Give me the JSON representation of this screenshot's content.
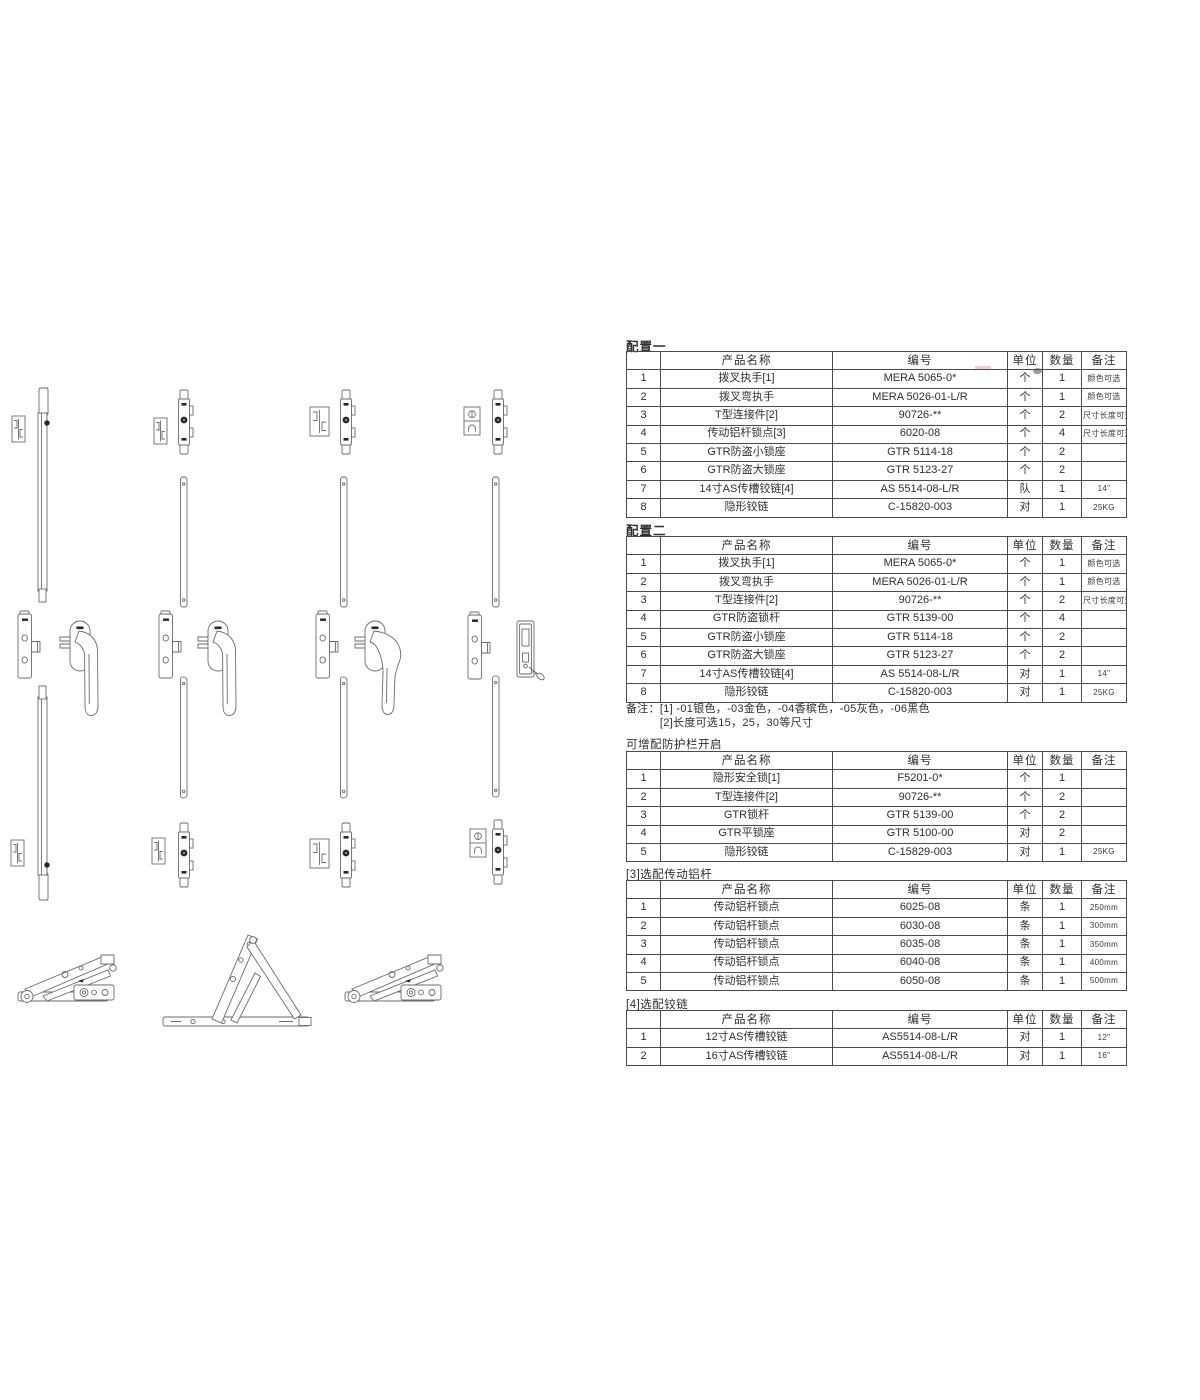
{
  "colors": {
    "table_border": "#4a4a4a",
    "text": "#2e2e2e",
    "line_art": "#6a6a6a"
  },
  "notes": {
    "label": "备注：",
    "line1": "[1] -01银色，-03金色，-04香槟色，-05灰色，-06黑色",
    "line2": "[2]长度可选15，25，30等尺寸"
  },
  "tables": [
    {
      "title": "配置一",
      "headers": [
        "",
        "产品名称",
        "编号",
        "单位",
        "数量",
        "备注"
      ],
      "rows": [
        [
          "1",
          "拨叉执手[1]",
          "MERA 5065-0*",
          "个",
          "1",
          "颜色可选"
        ],
        [
          "2",
          "拨叉弯执手",
          "MERA 5026-01-L/R",
          "个",
          "1",
          "颜色可选"
        ],
        [
          "3",
          "T型连接件[2]",
          "90726-**",
          "个",
          "2",
          "尺寸长度可选"
        ],
        [
          "4",
          "传动铝杆锁点[3]",
          "6020-08",
          "个",
          "4",
          "尺寸长度可选"
        ],
        [
          "5",
          "GTR防盗小锁座",
          "GTR 5114-18",
          "个",
          "2",
          ""
        ],
        [
          "6",
          "GTR防盗大锁座",
          "GTR 5123-27",
          "个",
          "2",
          ""
        ],
        [
          "7",
          "14寸AS传槽铰链[4]",
          "AS 5514-08-L/R",
          "队",
          "1",
          "14\""
        ],
        [
          "8",
          "隐形铰链",
          "C-15820-003",
          "对",
          "1",
          "25KG"
        ]
      ]
    },
    {
      "title": "配置二",
      "headers": [
        "",
        "产品名称",
        "编号",
        "单位",
        "数量",
        "备注"
      ],
      "rows": [
        [
          "1",
          "拨叉执手[1]",
          "MERA 5065-0*",
          "个",
          "1",
          "颜色可选"
        ],
        [
          "2",
          "拨叉弯执手",
          "MERA 5026-01-L/R",
          "个",
          "1",
          "颜色可选"
        ],
        [
          "3",
          "T型连接件[2]",
          "90726-**",
          "个",
          "2",
          "尺寸长度可选"
        ],
        [
          "4",
          "GTR防盗锁杆",
          "GTR 5139-00",
          "个",
          "4",
          ""
        ],
        [
          "5",
          "GTR防盗小锁座",
          "GTR 5114-18",
          "个",
          "2",
          ""
        ],
        [
          "6",
          "GTR防盗大锁座",
          "GTR 5123-27",
          "个",
          "2",
          ""
        ],
        [
          "7",
          "14寸AS传槽铰链[4]",
          "AS 5514-08-L/R",
          "对",
          "1",
          "14\""
        ],
        [
          "8",
          "隐形铰链",
          "C-15820-003",
          "对",
          "1",
          "25KG"
        ]
      ]
    },
    {
      "title": "可增配防护栏开启",
      "headers": [
        "",
        "产品名称",
        "编号",
        "单位",
        "数量",
        "备注"
      ],
      "rows": [
        [
          "1",
          "隐形安全锁[1]",
          "F5201-0*",
          "个",
          "1",
          ""
        ],
        [
          "2",
          "T型连接件[2]",
          "90726-**",
          "个",
          "2",
          ""
        ],
        [
          "3",
          "GTR锁杆",
          "GTR 5139-00",
          "个",
          "2",
          ""
        ],
        [
          "4",
          "GTR平锁座",
          "GTR 5100-00",
          "对",
          "2",
          ""
        ],
        [
          "5",
          "隐形铰链",
          "C-15829-003",
          "对",
          "1",
          "25KG"
        ]
      ]
    },
    {
      "title": "[3]选配传动铝杆",
      "headers": [
        "",
        "产品名称",
        "编号",
        "单位",
        "数量",
        "备注"
      ],
      "rows": [
        [
          "1",
          "传动铝杆锁点",
          "6025-08",
          "条",
          "1",
          "250mm"
        ],
        [
          "2",
          "传动铝杆锁点",
          "6030-08",
          "条",
          "1",
          "300mm"
        ],
        [
          "3",
          "传动铝杆锁点",
          "6035-08",
          "条",
          "1",
          "350mm"
        ],
        [
          "4",
          "传动铝杆锁点",
          "6040-08",
          "条",
          "1",
          "400mm"
        ],
        [
          "5",
          "传动铝杆锁点",
          "6050-08",
          "条",
          "1",
          "500mm"
        ]
      ]
    },
    {
      "title": "[4]选配铰链",
      "headers": [
        "",
        "产品名称",
        "编号",
        "单位",
        "数量",
        "备注"
      ],
      "rows": [
        [
          "1",
          "12寸AS传槽铰链",
          "AS5514-08-L/R",
          "对",
          "1",
          "12\""
        ],
        [
          "2",
          "16寸AS传槽铰链",
          "AS5514-08-L/R",
          "对",
          "1",
          "16\""
        ]
      ]
    }
  ]
}
